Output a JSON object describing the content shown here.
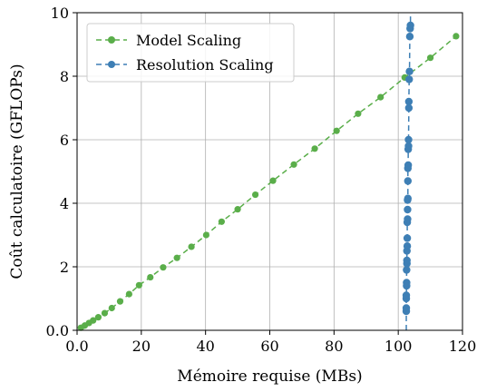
{
  "chart_data": {
    "type": "line",
    "title": "",
    "xlabel": "Mémoire requise (MBs)",
    "ylabel": "Coût calculatoire (GFLOPs)",
    "xlim": [
      0,
      120
    ],
    "ylim": [
      0,
      10
    ],
    "x_ticks": [
      0,
      20,
      40,
      60,
      80,
      100,
      120
    ],
    "y_ticks": [
      0,
      2,
      4,
      6,
      8,
      10
    ],
    "x_tick_labels": [
      "0.0",
      "20",
      "40",
      "60",
      "80",
      "100",
      "120"
    ],
    "y_tick_labels": [
      "0.0",
      "2",
      "4",
      "6",
      "8",
      "10"
    ],
    "grid": true,
    "legend_position": "top-left",
    "series": [
      {
        "name": "Model Scaling",
        "color": "#5aae4a",
        "line_style": "dashed",
        "x": [
          1.2,
          2.4,
          3.7,
          5.0,
          6.6,
          8.6,
          10.8,
          13.4,
          16.2,
          19.3,
          22.8,
          26.8,
          31.1,
          35.6,
          40.2,
          45.0,
          50.0,
          55.5,
          61.0,
          67.5,
          74.0,
          80.8,
          87.5,
          94.5,
          102.0,
          110.0,
          118.0
        ],
        "y": [
          0.08,
          0.15,
          0.23,
          0.31,
          0.41,
          0.54,
          0.7,
          0.91,
          1.14,
          1.42,
          1.67,
          1.98,
          2.28,
          2.63,
          3.0,
          3.42,
          3.81,
          4.27,
          4.71,
          5.22,
          5.72,
          6.28,
          6.82,
          7.34,
          7.96,
          8.58,
          9.26
        ]
      },
      {
        "name": "Resolution Scaling",
        "color": "#3e7fb5",
        "line_style": "dashed",
        "x": [
          102.5,
          102.5,
          102.5,
          102.5,
          102.6,
          102.6,
          102.6,
          102.7,
          102.7,
          102.7,
          102.8,
          102.8,
          102.8,
          102.9,
          102.9,
          102.9,
          103.0,
          103.0,
          103.0,
          103.1,
          103.1,
          103.2,
          103.2,
          103.3,
          103.3,
          103.4,
          103.5,
          103.6,
          103.7,
          103.8
        ],
        "y": [
          0.6,
          0.7,
          1.0,
          1.1,
          1.4,
          1.5,
          1.9,
          2.1,
          2.2,
          2.5,
          2.65,
          2.9,
          3.4,
          3.5,
          3.8,
          4.1,
          4.15,
          4.7,
          5.1,
          5.2,
          5.7,
          5.8,
          6.0,
          7.0,
          7.2,
          7.9,
          8.15,
          9.25,
          9.5,
          9.6
        ]
      }
    ]
  }
}
